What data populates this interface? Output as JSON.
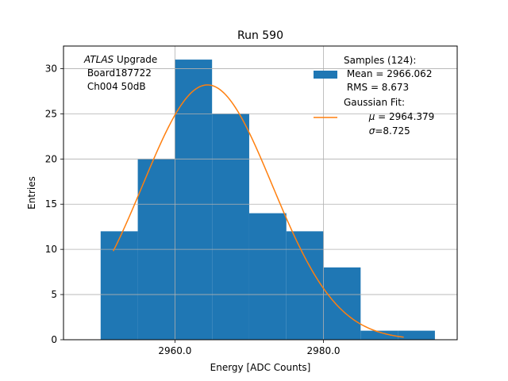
{
  "chart_data": {
    "type": "bar",
    "title": "Run 590",
    "xlabel": "Energy [ADC Counts]",
    "ylabel": "Entries",
    "xlim": [
      2945,
      2998
    ],
    "ylim": [
      0,
      32.5
    ],
    "x_ticks": [
      2960.0,
      2980.0
    ],
    "x_tick_labels": [
      "2960.0",
      "2980.0"
    ],
    "y_ticks": [
      0,
      5,
      10,
      15,
      20,
      25,
      30
    ],
    "y_tick_labels": [
      "0",
      "5",
      "10",
      "15",
      "20",
      "25",
      "30"
    ],
    "grid": true,
    "bins": [
      {
        "start": 2950,
        "end": 2955,
        "count": 12
      },
      {
        "start": 2955,
        "end": 2960,
        "count": 20
      },
      {
        "start": 2960,
        "end": 2965,
        "count": 31
      },
      {
        "start": 2965,
        "end": 2970,
        "count": 25
      },
      {
        "start": 2970,
        "end": 2975,
        "count": 14
      },
      {
        "start": 2975,
        "end": 2980,
        "count": 12
      },
      {
        "start": 2980,
        "end": 2985,
        "count": 8
      },
      {
        "start": 2985,
        "end": 2990,
        "count": 1
      },
      {
        "start": 2990,
        "end": 2995,
        "count": 1
      }
    ],
    "fit": {
      "amplitude": 28.2,
      "mu": 2964.379,
      "sigma": 8.725,
      "x_range": [
        2951.7,
        2990.8
      ]
    },
    "annotation": {
      "italic": "ATLAS",
      "line1_rest": " Upgrade",
      "line2": " Board187722",
      "line3": " Ch004 50dB"
    },
    "legend": {
      "location": "upper right",
      "samples": {
        "line1": "Samples (124):",
        "line2": " Mean = 2966.062",
        "line3": " RMS = 8.673"
      },
      "gauss": {
        "line1": "Gaussian Fit:",
        "mu_symbol": "μ",
        "mu_rest": " = 2964.379",
        "sigma_symbol": "σ",
        "sigma_rest": "=8.725"
      }
    },
    "colors": {
      "bar": "#1f77b4",
      "fit": "#ff7f0e",
      "grid": "#b0b0b0"
    }
  }
}
